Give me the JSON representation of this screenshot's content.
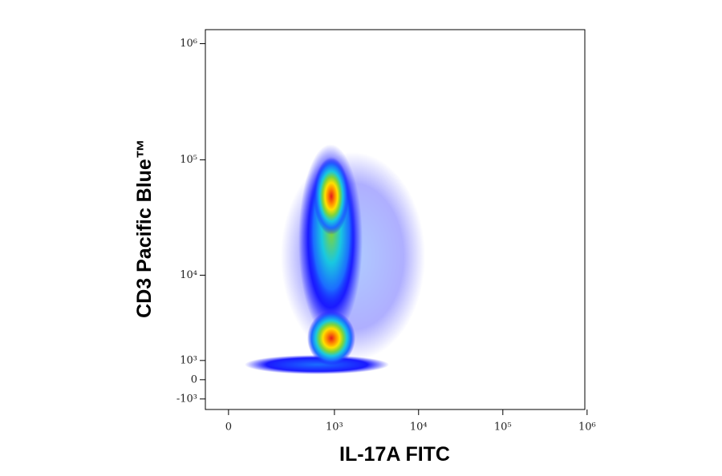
{
  "chart_data": {
    "type": "density",
    "xlabel": "IL-17A FITC",
    "ylabel": "CD3 Pacific Blue™",
    "xscale": "biexponential",
    "yscale": "biexponential",
    "xlim": [
      -75,
      940000
    ],
    "ylim": [
      -1600,
      1320000
    ],
    "xticks": [
      0,
      {
        "value": 1000,
        "label": "10³"
      },
      {
        "value": 10000,
        "label": "10⁴"
      },
      {
        "value": 100000,
        "label": "10⁵"
      },
      {
        "value": 1000000,
        "label": "10⁶"
      }
    ],
    "yticks": [
      {
        "value": -1000,
        "label": "-10³"
      },
      0,
      {
        "value": 1000,
        "label": "10³"
      },
      {
        "value": 10000,
        "label": "10⁴"
      },
      {
        "value": 100000,
        "label": "10⁵"
      },
      {
        "value": 1000000,
        "label": "10⁶"
      }
    ]
  }
}
